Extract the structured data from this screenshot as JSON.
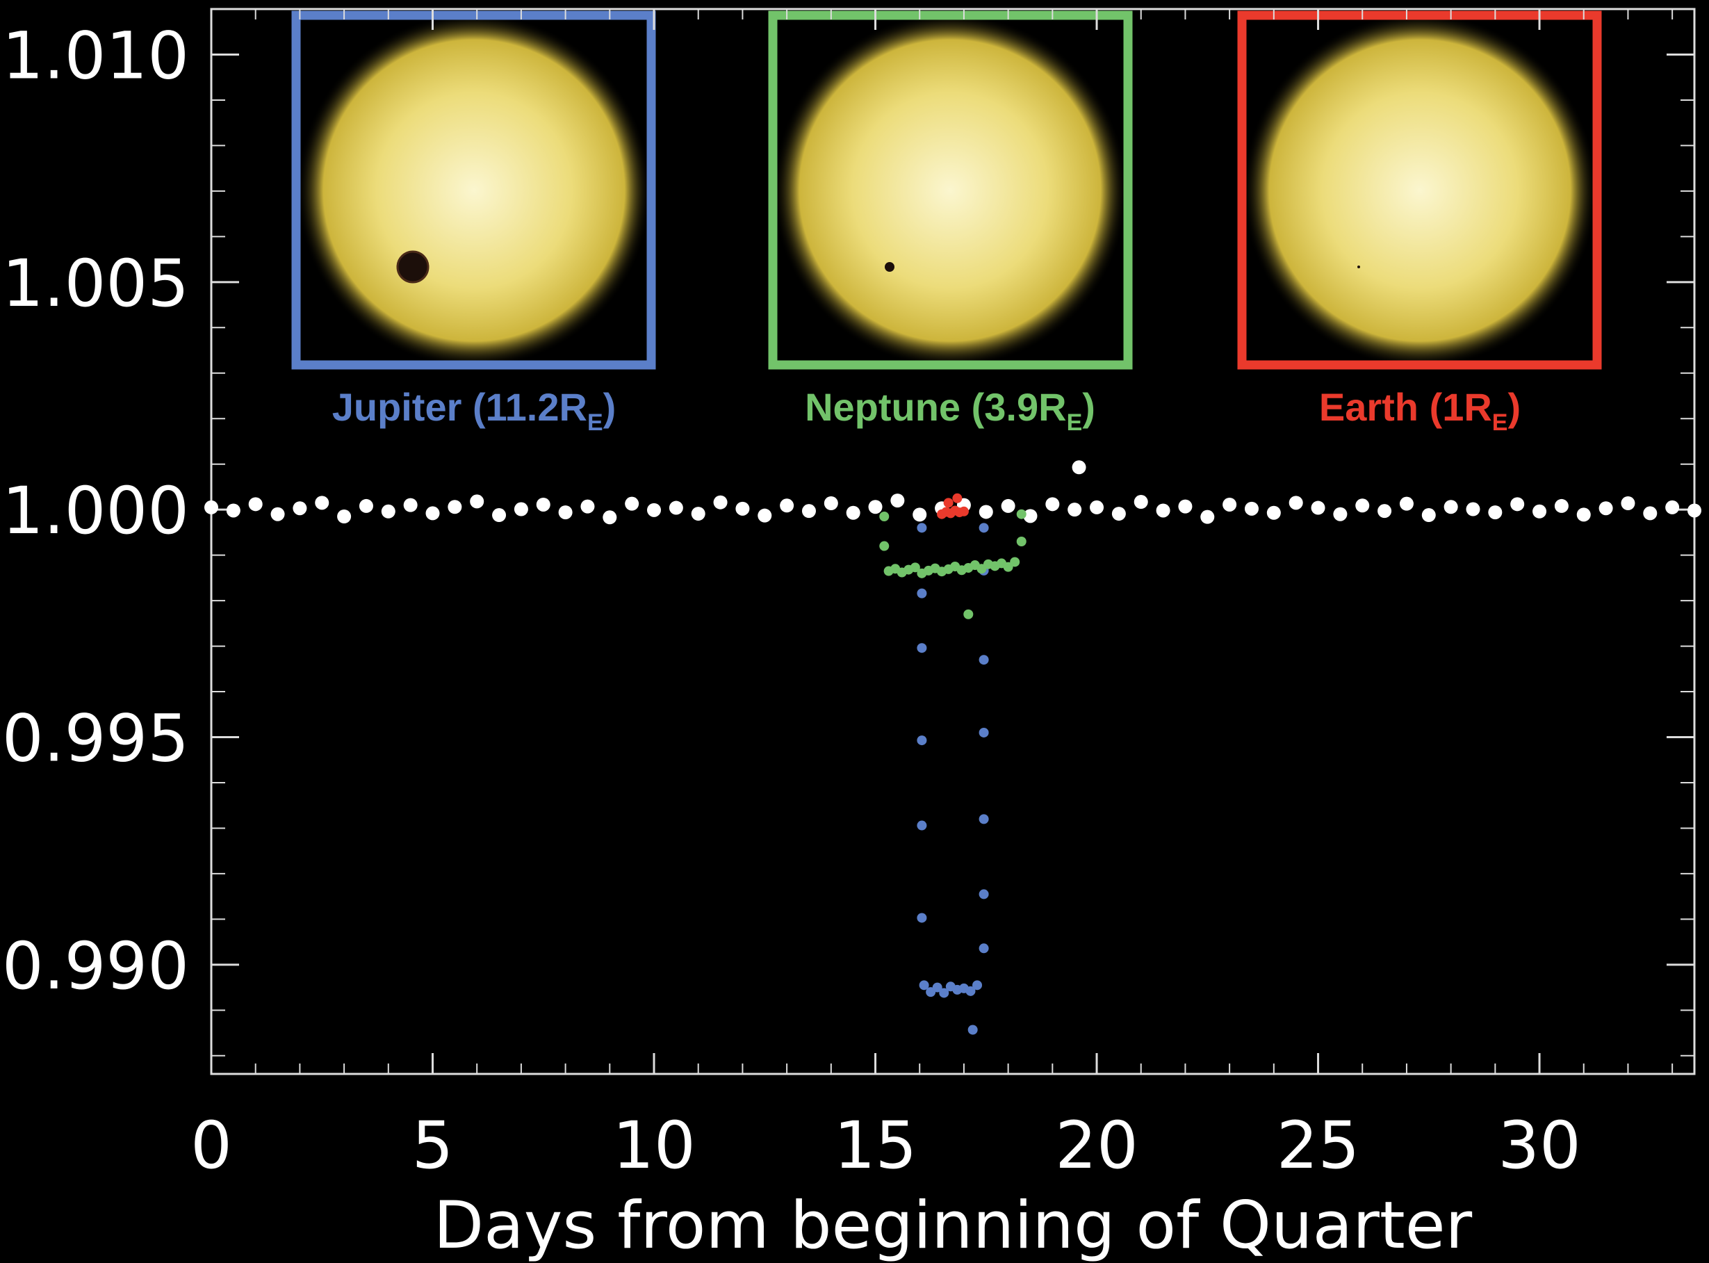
{
  "chart_data": {
    "type": "scatter",
    "xlabel": "Days from beginning of Quarter",
    "xlim": [
      0,
      33.5
    ],
    "ylim": [
      0.9876,
      1.011
    ],
    "xticks": [
      0,
      5,
      10,
      15,
      20,
      25,
      30
    ],
    "xticks_minor": [
      1,
      2,
      3,
      4,
      6,
      7,
      8,
      9,
      11,
      12,
      13,
      14,
      16,
      17,
      18,
      19,
      21,
      22,
      23,
      24,
      26,
      27,
      28,
      29,
      31,
      32,
      33
    ],
    "yticks": [
      {
        "value": 0.99,
        "label": "0.990"
      },
      {
        "value": 0.995,
        "label": "0.995"
      },
      {
        "value": 1.0,
        "label": "1.000"
      },
      {
        "value": 1.005,
        "label": "1.005"
      },
      {
        "value": 1.01,
        "label": "1.010"
      }
    ],
    "yticks_minor": [
      0.988,
      0.989,
      0.991,
      0.992,
      0.993,
      0.994,
      0.996,
      0.997,
      0.998,
      0.999,
      1.001,
      1.002,
      1.003,
      1.004,
      1.006,
      1.007,
      1.008,
      1.009
    ],
    "annotations": [
      {
        "text": "Jupiter (11.2R",
        "sub": "E",
        "end": ")",
        "color": "#5b7fc9"
      },
      {
        "text": "Neptune (3.9R",
        "sub": "E",
        "end": ")",
        "color": "#72c36a"
      },
      {
        "text": "Earth (1R",
        "sub": "E",
        "end": ")",
        "color": "#ea3a2c"
      }
    ],
    "series": [
      {
        "color": "#ffffff",
        "x": [
          0,
          0.5,
          1,
          1.5,
          2,
          2.5,
          3,
          3.5,
          4,
          4.5,
          5,
          5.5,
          6,
          6.5,
          7,
          7.5,
          8,
          8.5,
          9,
          9.5,
          10,
          10.5,
          11,
          11.5,
          12,
          12.5,
          13,
          13.5,
          14,
          14.5,
          15,
          15.5,
          16,
          16.5,
          17,
          17.5,
          18,
          18.5,
          19,
          19.5,
          20,
          20.5,
          21,
          21.5,
          22,
          22.5,
          23,
          23.5,
          24,
          24.5,
          25,
          25.5,
          26,
          26.5,
          27,
          27.5,
          28,
          28.5,
          29,
          29.5,
          30,
          30.5,
          31,
          31.5,
          32,
          32.5,
          33,
          33.5,
          19.6
        ],
        "values": [
          1.00005,
          0.99998,
          1.00012,
          0.9999,
          1.00003,
          1.00015,
          0.99985,
          1.00008,
          0.99996,
          1.0001,
          0.99992,
          1.00006,
          1.00018,
          0.99988,
          1.00001,
          1.00011,
          0.99994,
          1.00007,
          0.99983,
          1.00013,
          0.99999,
          1.00004,
          0.99991,
          1.00016,
          1.00002,
          0.99987,
          1.00009,
          0.99997,
          1.00014,
          0.99993,
          1.00006,
          1.0002,
          0.99989,
          1.00003,
          1.0001,
          0.99995,
          1.00008,
          0.99986,
          1.00012,
          1.0,
          1.00005,
          0.99991,
          1.00017,
          0.99998,
          1.00007,
          0.99984,
          1.00011,
          1.00002,
          0.99993,
          1.00015,
          1.00004,
          0.9999,
          1.00009,
          0.99997,
          1.00013,
          0.99988,
          1.00006,
          1.00001,
          0.99994,
          1.00012,
          0.99996,
          1.00008,
          0.99989,
          1.00003,
          1.00014,
          0.99992,
          1.00005,
          0.99998,
          1.00093
        ]
      },
      {
        "color": "#5b7fc9",
        "x": [
          16.05,
          16.05,
          16.05,
          16.05,
          16.05,
          16.05,
          16.1,
          16.25,
          16.4,
          16.55,
          16.7,
          16.85,
          17.0,
          17.15,
          17.3,
          17.2,
          17.45,
          17.45,
          17.45,
          17.45,
          17.45,
          17.45,
          17.45
        ],
        "values": [
          0.9996,
          0.99816,
          0.99696,
          0.99493,
          0.99306,
          0.99103,
          0.98955,
          0.9894,
          0.9895,
          0.98938,
          0.98952,
          0.98945,
          0.98948,
          0.98942,
          0.98955,
          0.98857,
          0.99036,
          0.99155,
          0.9932,
          0.9951,
          0.9967,
          0.99866,
          0.9996
        ]
      },
      {
        "color": "#72c36a",
        "x": [
          15.2,
          15.2,
          15.3,
          15.45,
          15.6,
          15.75,
          15.9,
          16.05,
          16.2,
          16.35,
          16.5,
          16.65,
          16.8,
          16.95,
          17.1,
          17.25,
          17.4,
          17.55,
          17.7,
          17.85,
          18.0,
          18.15,
          18.3,
          18.3,
          17.1
        ],
        "values": [
          0.99985,
          0.9992,
          0.99865,
          0.9987,
          0.99862,
          0.99868,
          0.99873,
          0.9986,
          0.99866,
          0.99871,
          0.99864,
          0.99869,
          0.99875,
          0.99867,
          0.99872,
          0.99878,
          0.9987,
          0.9988,
          0.99876,
          0.99882,
          0.99874,
          0.99885,
          0.9999,
          0.9993,
          0.9977
        ]
      },
      {
        "color": "#ea3a2c",
        "x": [
          16.5,
          16.6,
          16.7,
          16.8,
          16.9,
          17.0,
          16.85,
          16.65
        ],
        "values": [
          0.9999,
          0.99995,
          0.99992,
          0.99998,
          0.99994,
          0.99996,
          1.00025,
          1.00015
        ]
      }
    ]
  }
}
